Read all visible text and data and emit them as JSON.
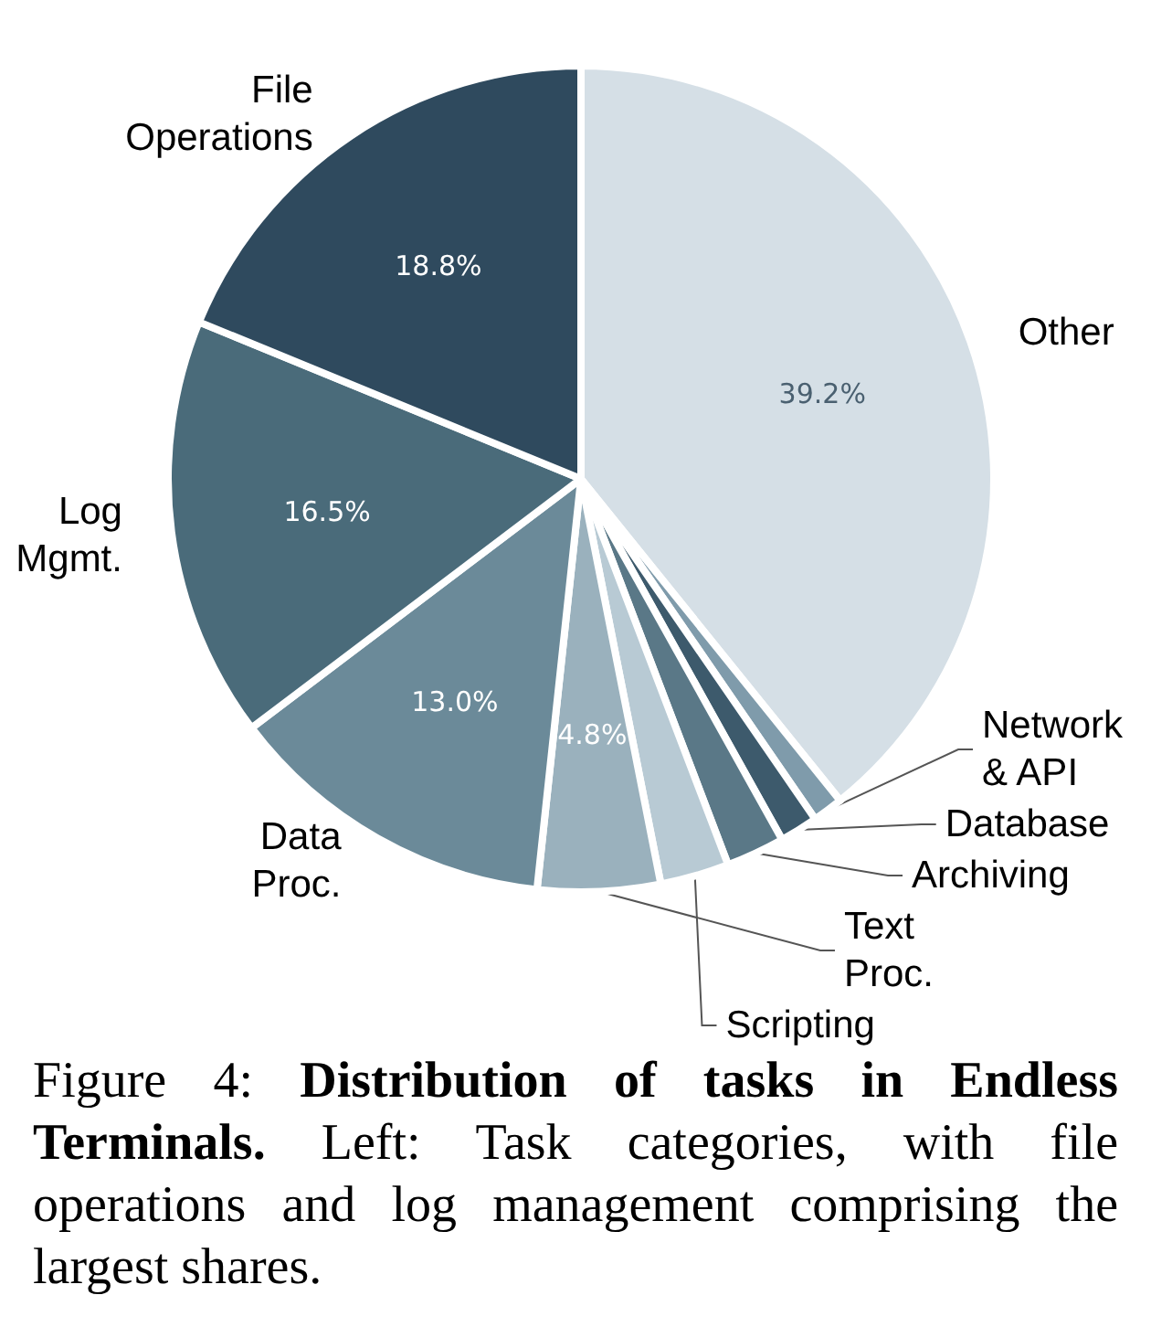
{
  "chart_data": {
    "type": "pie",
    "categories": [
      "Other",
      "Network & API",
      "Database",
      "Archiving",
      "Scripting",
      "Text Proc.",
      "Data Proc.",
      "Log Mgmt.",
      "File Operations"
    ],
    "values": [
      39.2,
      1.2,
      1.5,
      2.3,
      2.7,
      4.8,
      13.0,
      16.5,
      18.8
    ],
    "value_labels": [
      "39.2%",
      null,
      null,
      null,
      null,
      "4.8%",
      "13.0%",
      "16.5%",
      "18.8%"
    ],
    "colors": [
      "#d5dfe6",
      "#7f9bab",
      "#3d5a6c",
      "#5a7887",
      "#b8cad4",
      "#9ab1bd",
      "#6b8a99",
      "#4a6b7a",
      "#2f4a5e"
    ],
    "legend": false,
    "annotations": [
      "Figure 4: ",
      "Distribution of tasks in Endless Terminals.",
      " Left: Task categories, with file operations and log management comprising the largest shares."
    ]
  }
}
